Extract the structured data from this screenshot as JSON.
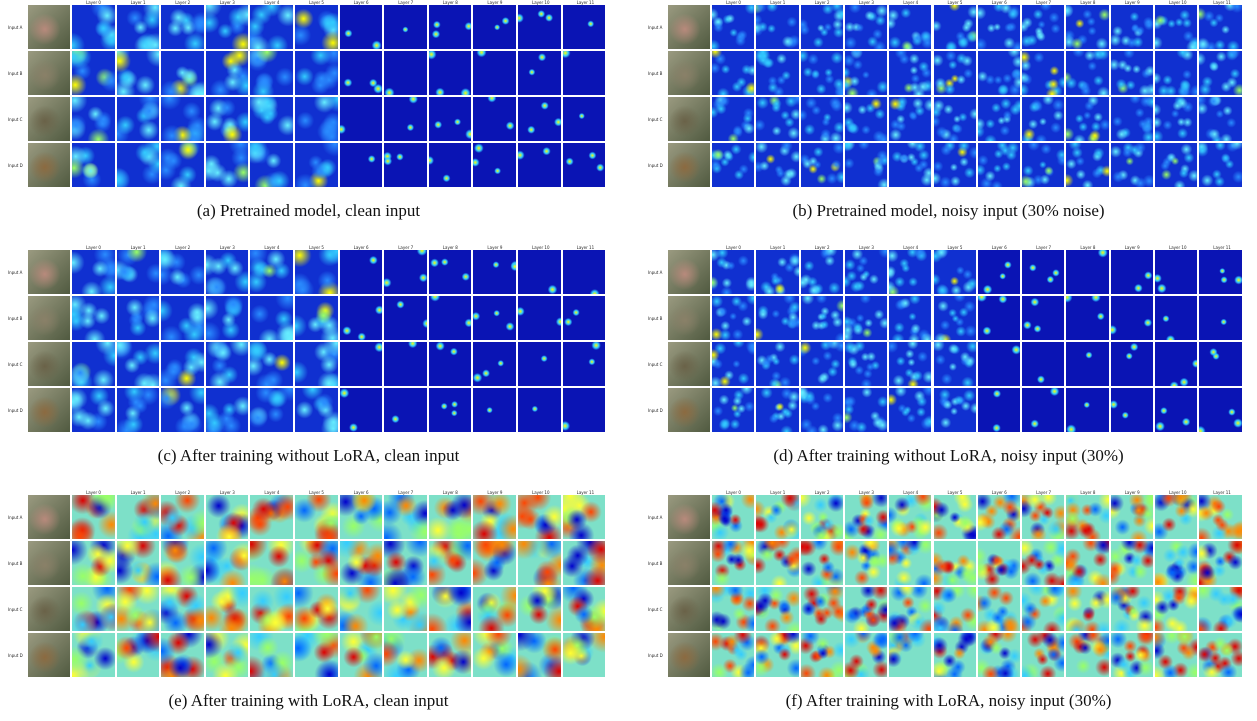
{
  "panels": [
    {
      "caption": "(a) Pretrained model, clean input",
      "layers": [
        "Layer 0",
        "Layer 1",
        "Layer 2",
        "Layer 3",
        "Layer 4",
        "Layer 5",
        "Layer 6",
        "Layer 7",
        "Layer 8",
        "Layer 9",
        "Layer 10",
        "Layer 11"
      ],
      "inputs": [
        "Input A",
        "Input B",
        "Input C",
        "Input D"
      ]
    },
    {
      "caption": "(b) Pretrained model, noisy input (30% noise)",
      "layers": [
        "Layer 0",
        "Layer 1",
        "Layer 2",
        "Layer 3",
        "Layer 4",
        "Layer 5",
        "Layer 6",
        "Layer 7",
        "Layer 8",
        "Layer 9",
        "Layer 10",
        "Layer 11"
      ],
      "inputs": [
        "Input A",
        "Input B",
        "Input C",
        "Input D"
      ]
    },
    {
      "caption": "(c) After training without LoRA, clean input",
      "layers": [
        "Layer 0",
        "Layer 1",
        "Layer 2",
        "Layer 3",
        "Layer 4",
        "Layer 5",
        "Layer 6",
        "Layer 7",
        "Layer 8",
        "Layer 9",
        "Layer 10",
        "Layer 11"
      ],
      "inputs": [
        "Input A",
        "Input B",
        "Input C",
        "Input D"
      ]
    },
    {
      "caption": "(d) After training without LoRA, noisy input (30%)",
      "layers": [
        "Layer 0",
        "Layer 1",
        "Layer 2",
        "Layer 3",
        "Layer 4",
        "Layer 5",
        "Layer 6",
        "Layer 7",
        "Layer 8",
        "Layer 9",
        "Layer 10",
        "Layer 11"
      ],
      "inputs": [
        "Input A",
        "Input B",
        "Input C",
        "Input D"
      ]
    },
    {
      "caption": "(e) After training with LoRA, clean input",
      "layers": [
        "Layer 0",
        "Layer 1",
        "Layer 2",
        "Layer 3",
        "Layer 4",
        "Layer 5",
        "Layer 6",
        "Layer 7",
        "Layer 8",
        "Layer 9",
        "Layer 10",
        "Layer 11"
      ],
      "inputs": [
        "Input A",
        "Input B",
        "Input C",
        "Input D"
      ]
    },
    {
      "caption": "(f) After training with LoRA, noisy input (30%)",
      "layers": [
        "Layer 0",
        "Layer 1",
        "Layer 2",
        "Layer 3",
        "Layer 4",
        "Layer 5",
        "Layer 6",
        "Layer 7",
        "Layer 8",
        "Layer 9",
        "Layer 10",
        "Layer 11"
      ],
      "inputs": [
        "Input A",
        "Input B",
        "Input C",
        "Input D"
      ]
    }
  ]
}
